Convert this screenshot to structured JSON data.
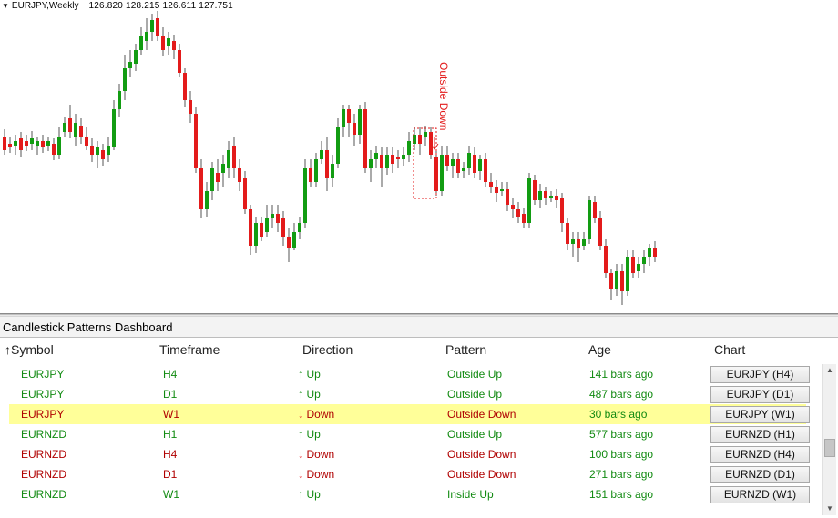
{
  "chart": {
    "header_symbol": "EURJPY,Weekly",
    "header_ohlc": "126.820 128.215 126.611 127.751",
    "annotation": "Outside Down",
    "colors": {
      "bull": "#129c12",
      "bear": "#e31b1b",
      "wick": "#555555",
      "marker": "#e31b1b"
    }
  },
  "panel": {
    "title": "Candlestick Patterns Dashboard",
    "columns": {
      "symbol": "Symbol",
      "timeframe": "Timeframe",
      "direction": "Direction",
      "pattern": "Pattern",
      "age": "Age",
      "chart": "Chart"
    },
    "sort_indicator": "↑",
    "rows": [
      {
        "symbol": "EURJPY",
        "timeframe": "H4",
        "direction": "Up",
        "pattern": "Outside Up",
        "age": "141 bars ago",
        "chart_button": "EURJPY (H4)",
        "trend": "up",
        "selected": false
      },
      {
        "symbol": "EURJPY",
        "timeframe": "D1",
        "direction": "Up",
        "pattern": "Outside Up",
        "age": "487 bars ago",
        "chart_button": "EURJPY (D1)",
        "trend": "up",
        "selected": false
      },
      {
        "symbol": "EURJPY",
        "timeframe": "W1",
        "direction": "Down",
        "pattern": "Outside Down",
        "age": "30 bars ago",
        "chart_button": "EURJPY (W1)",
        "trend": "down",
        "selected": true
      },
      {
        "symbol": "EURNZD",
        "timeframe": "H1",
        "direction": "Up",
        "pattern": "Outside Up",
        "age": "577 bars ago",
        "chart_button": "EURNZD (H1)",
        "trend": "up",
        "selected": false
      },
      {
        "symbol": "EURNZD",
        "timeframe": "H4",
        "direction": "Down",
        "pattern": "Outside Down",
        "age": "100 bars ago",
        "chart_button": "EURNZD (H4)",
        "trend": "down",
        "selected": false
      },
      {
        "symbol": "EURNZD",
        "timeframe": "D1",
        "direction": "Down",
        "pattern": "Outside Down",
        "age": "271 bars ago",
        "chart_button": "EURNZD (D1)",
        "trend": "down",
        "selected": false
      },
      {
        "symbol": "EURNZD",
        "timeframe": "W1",
        "direction": "Up",
        "pattern": "Inside Up",
        "age": "151 bars ago",
        "chart_button": "EURNZD (W1)",
        "trend": "up",
        "selected": false
      }
    ],
    "colors": {
      "up_text": "#118a11",
      "down_text": "#b00000",
      "age_text": "#118a11",
      "selected_bg": "#ffff99"
    }
  }
}
